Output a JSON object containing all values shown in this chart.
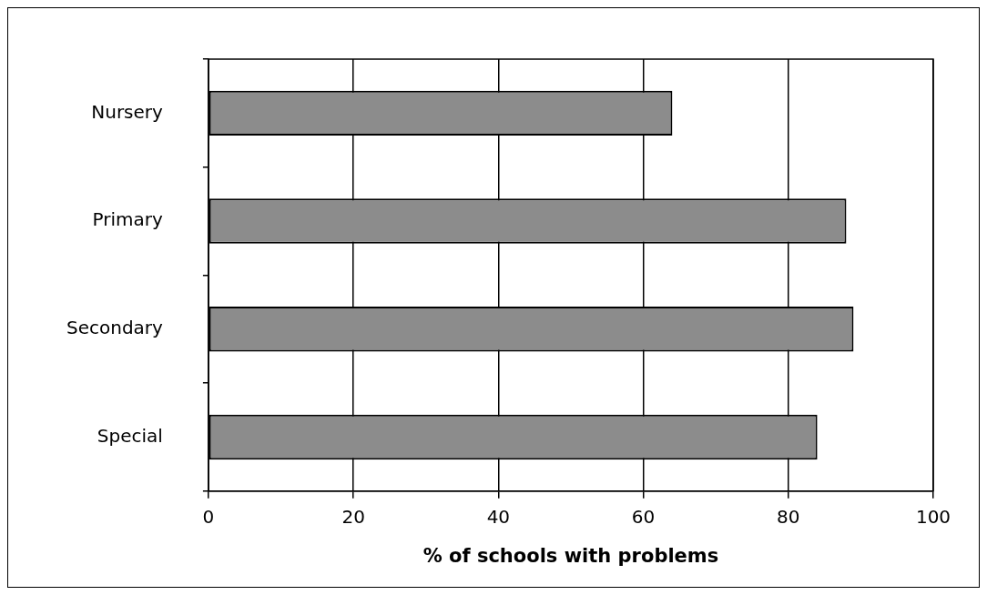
{
  "chart_data": {
    "type": "bar",
    "orientation": "horizontal",
    "xlabel": "% of schools with problems",
    "categories": [
      "Nursery",
      "Primary",
      "Secondary",
      "Special"
    ],
    "values": [
      64,
      88,
      89,
      84
    ],
    "color": "#8c8c8c",
    "xlim": [
      0,
      100
    ],
    "xticks": [
      0,
      20,
      40,
      60,
      80,
      100
    ],
    "grid": "x",
    "legend": false
  }
}
